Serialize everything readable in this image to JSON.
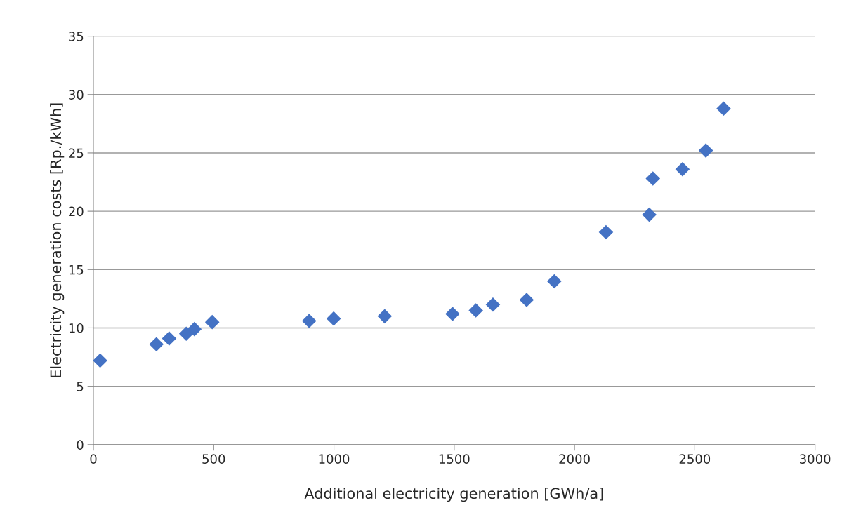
{
  "chart_data": {
    "type": "scatter",
    "xlabel": "Additional electricity generation [GWh/a]",
    "ylabel": "Electricity generation costs [Rp./kWh]",
    "x": [
      28,
      262,
      315,
      386,
      420,
      494,
      897,
      999,
      1211,
      1493,
      1590,
      1661,
      1801,
      1916,
      2131,
      2311,
      2326,
      2449,
      2546,
      2620
    ],
    "series": [
      {
        "color": "#4472c4",
        "values": [
          7.2,
          8.6,
          9.1,
          9.5,
          9.9,
          10.5,
          10.6,
          10.8,
          11.0,
          11.2,
          11.5,
          12.0,
          12.4,
          14.0,
          18.2,
          19.7,
          22.8,
          23.6,
          25.2,
          28.8
        ]
      }
    ],
    "xlim": [
      0,
      3000
    ],
    "xticks": [
      0,
      500,
      1000,
      1500,
      2000,
      2500,
      3000
    ],
    "ylim": [
      0,
      35
    ],
    "yticks": [
      0,
      5,
      10,
      15,
      20,
      25,
      30,
      35
    ],
    "grid": "y",
    "marker": "diamond",
    "legend": false
  }
}
